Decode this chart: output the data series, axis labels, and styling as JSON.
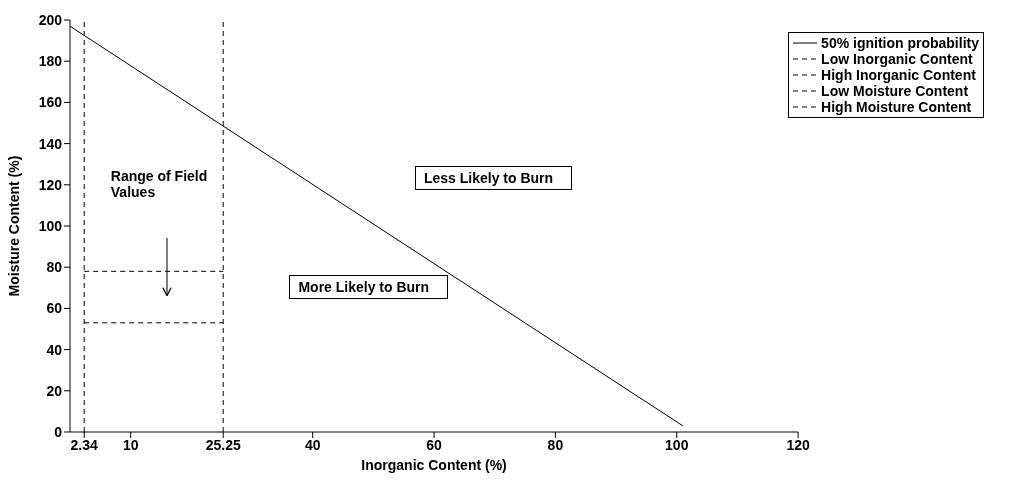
{
  "chart_data": {
    "type": "line",
    "xlabel": "Inorganic Content (%)",
    "ylabel": "Moisture Content (%)",
    "xlim": [
      0,
      120
    ],
    "xticks": [
      2.34,
      10,
      25.25,
      40,
      60,
      80,
      100,
      120
    ],
    "ylim": [
      0,
      200
    ],
    "yticks": [
      0,
      20,
      40,
      60,
      80,
      100,
      120,
      140,
      160,
      180,
      200
    ],
    "series": [
      {
        "name": "50% ignition probability",
        "color": "#000000",
        "x": [
          0,
          101
        ],
        "values": [
          197,
          3
        ],
        "line_style": "solid"
      },
      {
        "name": "Low Inorganic Content",
        "color": "#000000",
        "x": [
          2.34,
          2.34
        ],
        "values": [
          0,
          200
        ],
        "line_style": "dashed"
      },
      {
        "name": "High Inorganic Content",
        "color": "#000000",
        "x": [
          25.25,
          25.25
        ],
        "values": [
          0,
          200
        ],
        "line_style": "dashed"
      },
      {
        "name": "Low Moisture Content",
        "color": "#000000",
        "x": [
          2.34,
          25.25
        ],
        "values": [
          53,
          53
        ],
        "line_style": "dashed"
      },
      {
        "name": "High Moisture Content",
        "color": "#000000",
        "x": [
          2.34,
          25.25
        ],
        "values": [
          78,
          78
        ],
        "line_style": "dashed"
      }
    ],
    "annotations": [
      "Range of Field Values",
      "Less Likely to Burn",
      "More Likely to Burn"
    ],
    "legend": "top right",
    "grid": false,
    "marker": "none"
  }
}
